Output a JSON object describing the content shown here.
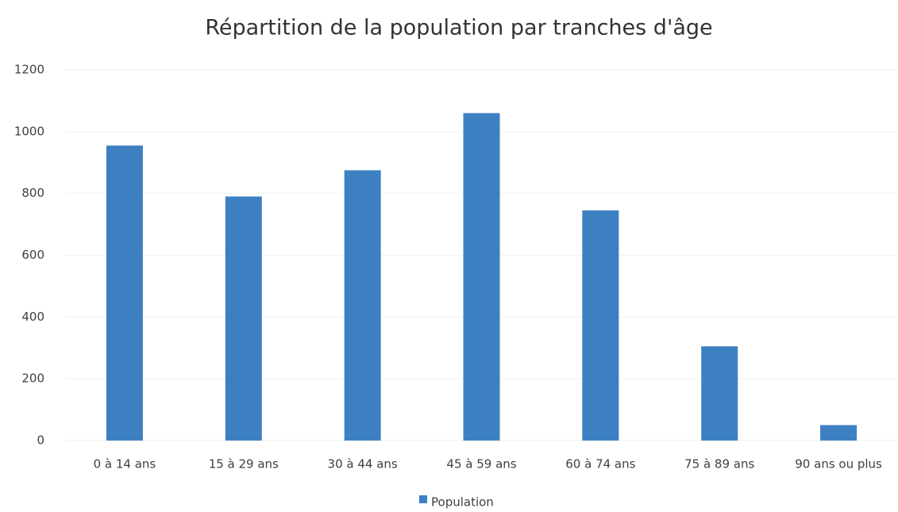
{
  "chart_data": {
    "type": "bar",
    "title": "Répartition de la population par tranches d'âge",
    "categories": [
      "0 à 14 ans",
      "15 à 29 ans",
      "30 à 44 ans",
      "45 à 59 ans",
      "60 à 74 ans",
      "75 à 89 ans",
      "90 ans ou plus"
    ],
    "series": [
      {
        "name": "Population",
        "color": "#3d80c2",
        "values": [
          955,
          790,
          875,
          1060,
          745,
          305,
          50
        ]
      }
    ],
    "ylim": [
      0,
      1200
    ],
    "yticks": [
      0,
      200,
      400,
      600,
      800,
      1000,
      1200
    ],
    "grid": true,
    "legend": "bottom"
  }
}
